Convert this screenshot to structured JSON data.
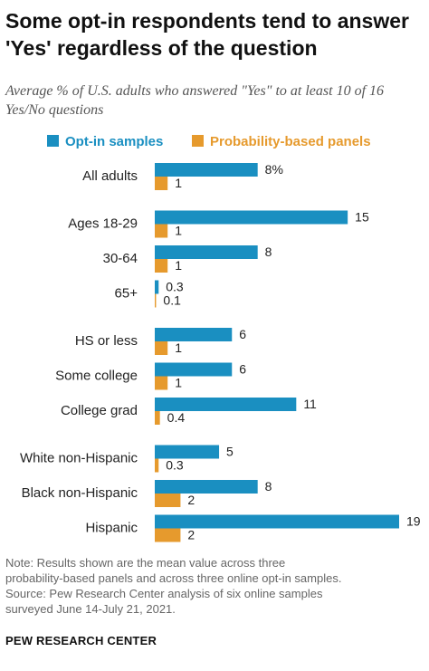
{
  "header": {
    "title": "Some opt-in respondents tend to answer 'Yes' regardless of the question",
    "subtitle": "Average % of U.S. adults who answered \"Yes\" to at least 10 of 16 Yes/No questions"
  },
  "footer": {
    "note_lines": [
      "Note: Results shown are the mean value across three",
      "probability-based panels and across three online opt-in samples.",
      "Source: Pew Research Center analysis of six online samples",
      "surveyed June 14-July 21, 2021."
    ],
    "brand": "PEW RESEARCH CENTER"
  },
  "chart_data": {
    "type": "bar",
    "orientation": "horizontal",
    "title": "Some opt-in respondents tend to answer 'Yes' regardless of the question",
    "subtitle": "Average % of U.S. adults who answered \"Yes\" to at least 10 of 16 Yes/No questions",
    "xlim": [
      0,
      19
    ],
    "grid": false,
    "legend_position": "top",
    "categories": [
      "All adults",
      "Ages 18-29",
      "30-64",
      "65+",
      "HS or less",
      "Some college",
      "College grad",
      "White non-Hispanic",
      "Black non-Hispanic",
      "Hispanic"
    ],
    "groups": [
      {
        "categories": [
          "All adults"
        ]
      },
      {
        "categories": [
          "Ages 18-29",
          "30-64",
          "65+"
        ]
      },
      {
        "categories": [
          "HS or less",
          "Some college",
          "College grad"
        ]
      },
      {
        "categories": [
          "White non-Hispanic",
          "Black non-Hispanic",
          "Hispanic"
        ]
      }
    ],
    "series": [
      {
        "name": "Opt-in samples",
        "color": "#1a8fc1",
        "values": [
          8,
          15,
          8,
          0.3,
          6,
          6,
          11,
          5,
          8,
          19
        ],
        "labels": [
          "8%",
          "15",
          "8",
          "0.3",
          "6",
          "6",
          "11",
          "5",
          "8",
          "19"
        ]
      },
      {
        "name": "Probability-based panels",
        "color": "#e69a2d",
        "values": [
          1,
          1,
          1,
          0.1,
          1,
          1,
          0.4,
          0.3,
          2,
          2
        ],
        "labels": [
          "1",
          "1",
          "1",
          "0.1",
          "1",
          "1",
          "0.4",
          "0.3",
          "2",
          "2"
        ]
      }
    ]
  }
}
